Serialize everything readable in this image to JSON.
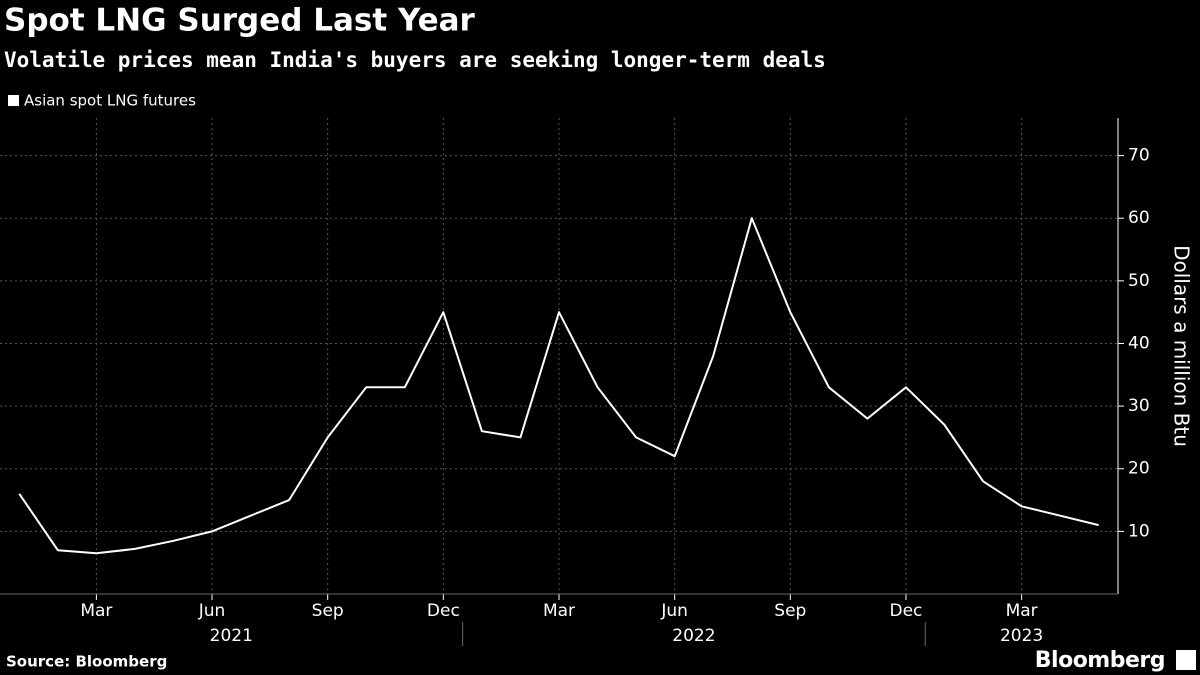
{
  "chart_data": {
    "type": "line",
    "title": "Spot LNG Surged Last Year",
    "subtitle": "Volatile prices mean India's buyers are seeking longer-term deals",
    "y_label": "Dollars a million Btu",
    "source": "Source: Bloomberg",
    "brand": "Bloomberg",
    "x": [
      "2021-01",
      "2021-02",
      "2021-03",
      "2021-04",
      "2021-05",
      "2021-06",
      "2021-07",
      "2021-08",
      "2021-09",
      "2021-10",
      "2021-11",
      "2021-12",
      "2022-01",
      "2022-02",
      "2022-03",
      "2022-04",
      "2022-05",
      "2022-06",
      "2022-07",
      "2022-08",
      "2022-09",
      "2022-10",
      "2022-11",
      "2022-12",
      "2023-01",
      "2023-02",
      "2023-03",
      "2023-04",
      "2023-05"
    ],
    "series": [
      {
        "name": "Asian spot LNG futures",
        "color": "#ffffff",
        "values": [
          16,
          7,
          6.5,
          7.2,
          8.5,
          10,
          12.5,
          15,
          25,
          33,
          33,
          45,
          26,
          25,
          45,
          33,
          25,
          22,
          38,
          60,
          45,
          33,
          28,
          33,
          27,
          18,
          14,
          12.5,
          11
        ]
      }
    ],
    "xlim": [
      "2021-01",
      "2023-05"
    ],
    "xticks": [
      {
        "value": "2021-03",
        "label": "Mar"
      },
      {
        "value": "2021-06",
        "label": "Jun"
      },
      {
        "value": "2021-09",
        "label": "Sep"
      },
      {
        "value": "2021-12",
        "label": "Dec"
      },
      {
        "value": "2022-03",
        "label": "Mar"
      },
      {
        "value": "2022-06",
        "label": "Jun"
      },
      {
        "value": "2022-09",
        "label": "Sep"
      },
      {
        "value": "2022-12",
        "label": "Dec"
      },
      {
        "value": "2023-03",
        "label": "Mar"
      }
    ],
    "year_labels": [
      "2021",
      "2022",
      "2023"
    ],
    "ylim": [
      0,
      76
    ],
    "yticks": [
      10,
      20,
      30,
      40,
      50,
      60,
      70
    ],
    "grid": true,
    "legend": "top-left"
  }
}
